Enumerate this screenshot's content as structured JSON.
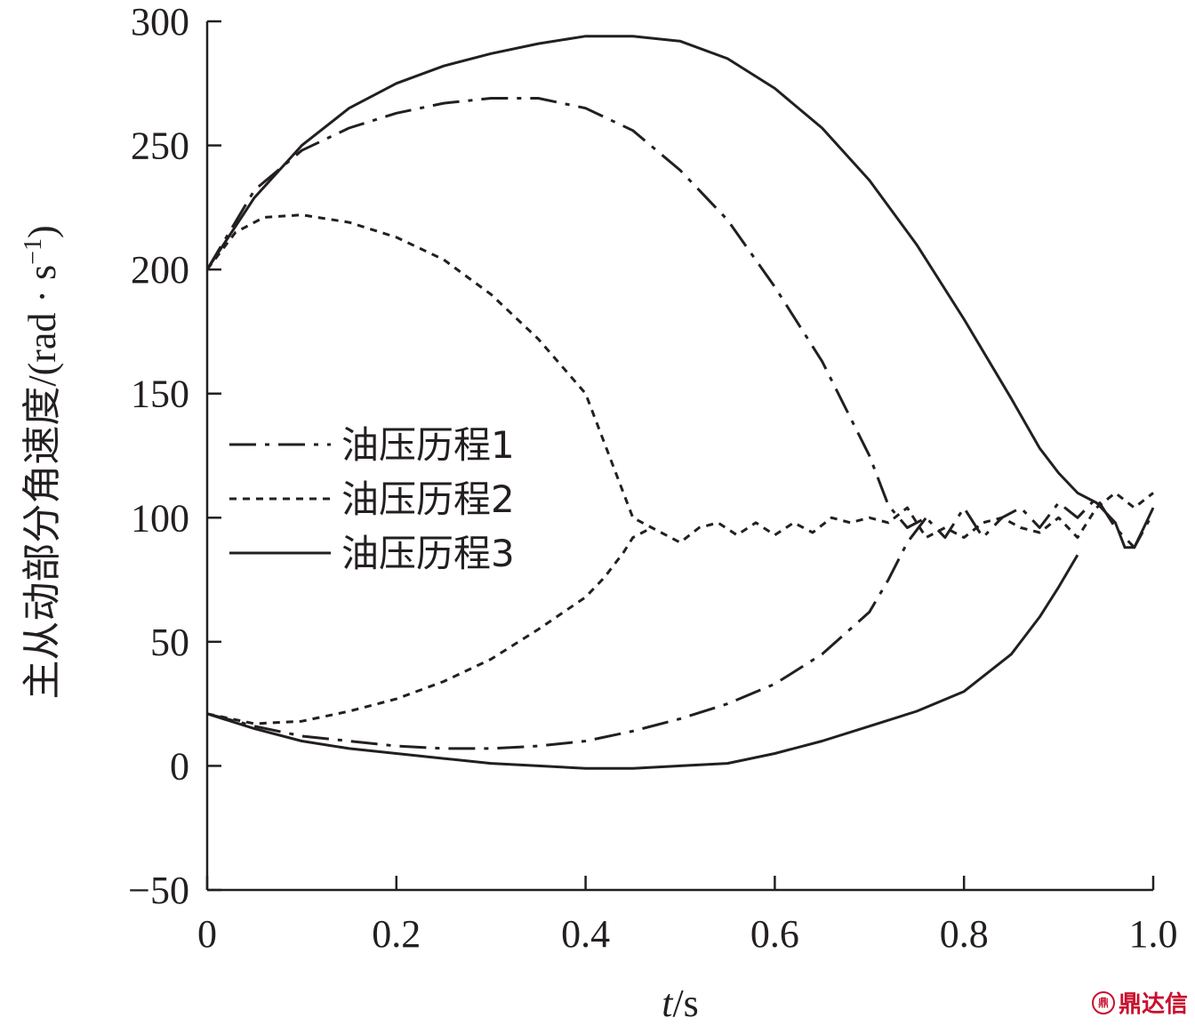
{
  "chart_data": {
    "type": "line",
    "xlabel": "t/s",
    "xlabel_italic_part": "t",
    "xlabel_rest": "/s",
    "ylabel": "主从动部分角速度/(rad · s",
    "ylabel_sup": "−1",
    "ylabel_close": ")",
    "xlim": [
      0,
      1.0
    ],
    "ylim": [
      -50,
      300
    ],
    "xticks": [
      "0",
      "0.2",
      "0.4",
      "0.6",
      "0.8",
      "1.0"
    ],
    "xtick_values": [
      0,
      0.2,
      0.4,
      0.6,
      0.8,
      1.0
    ],
    "yticks": [
      "−50",
      "0",
      "50",
      "100",
      "150",
      "200",
      "250",
      "300"
    ],
    "ytick_values": [
      -50,
      0,
      50,
      100,
      150,
      200,
      250,
      300
    ],
    "grid": false,
    "legend_position": "center-left",
    "series": [
      {
        "name": "油压历程1",
        "style": "dash-dot",
        "driving": [
          [
            0,
            200
          ],
          [
            0.05,
            232
          ],
          [
            0.1,
            248
          ],
          [
            0.15,
            257
          ],
          [
            0.2,
            263
          ],
          [
            0.25,
            267
          ],
          [
            0.3,
            269
          ],
          [
            0.35,
            269
          ],
          [
            0.4,
            265
          ],
          [
            0.45,
            256
          ],
          [
            0.5,
            240
          ],
          [
            0.55,
            220
          ],
          [
            0.6,
            193
          ],
          [
            0.65,
            163
          ],
          [
            0.7,
            125
          ],
          [
            0.72,
            105
          ],
          [
            0.74,
            96
          ],
          [
            0.76,
            100
          ],
          [
            0.78,
            92
          ],
          [
            0.8,
            104
          ],
          [
            0.82,
            92
          ],
          [
            0.84,
            100
          ],
          [
            0.86,
            104
          ],
          [
            0.88,
            96
          ],
          [
            0.9,
            106
          ],
          [
            0.92,
            100
          ],
          [
            0.94,
            108
          ],
          [
            0.96,
            96
          ],
          [
            0.98,
            88
          ],
          [
            1.0,
            102
          ]
        ],
        "driven": [
          [
            0,
            21
          ],
          [
            0.05,
            16
          ],
          [
            0.1,
            12
          ],
          [
            0.15,
            10
          ],
          [
            0.2,
            8
          ],
          [
            0.25,
            7
          ],
          [
            0.3,
            7
          ],
          [
            0.35,
            8
          ],
          [
            0.4,
            10
          ],
          [
            0.45,
            14
          ],
          [
            0.5,
            19
          ],
          [
            0.55,
            25
          ],
          [
            0.6,
            33
          ],
          [
            0.65,
            45
          ],
          [
            0.7,
            62
          ],
          [
            0.72,
            75
          ],
          [
            0.74,
            90
          ],
          [
            0.76,
            100
          ]
        ]
      },
      {
        "name": "油压历程2",
        "style": "dotted",
        "driving": [
          [
            0,
            200
          ],
          [
            0.03,
            215
          ],
          [
            0.06,
            221
          ],
          [
            0.1,
            222
          ],
          [
            0.15,
            219
          ],
          [
            0.2,
            213
          ],
          [
            0.25,
            204
          ],
          [
            0.3,
            190
          ],
          [
            0.35,
            172
          ],
          [
            0.4,
            150
          ],
          [
            0.43,
            120
          ],
          [
            0.45,
            100
          ],
          [
            0.47,
            96
          ],
          [
            0.5,
            90
          ],
          [
            0.52,
            96
          ],
          [
            0.54,
            98
          ],
          [
            0.56,
            93
          ],
          [
            0.58,
            98
          ],
          [
            0.6,
            93
          ],
          [
            0.62,
            98
          ],
          [
            0.64,
            94
          ],
          [
            0.66,
            100
          ],
          [
            0.68,
            98
          ],
          [
            0.7,
            100
          ],
          [
            0.72,
            98
          ],
          [
            0.74,
            104
          ],
          [
            0.76,
            92
          ],
          [
            0.78,
            96
          ],
          [
            0.8,
            92
          ],
          [
            0.82,
            98
          ],
          [
            0.84,
            100
          ],
          [
            0.86,
            96
          ],
          [
            0.88,
            94
          ],
          [
            0.9,
            100
          ],
          [
            0.92,
            92
          ],
          [
            0.94,
            104
          ],
          [
            0.96,
            110
          ],
          [
            0.98,
            104
          ],
          [
            1.0,
            110
          ]
        ],
        "driven": [
          [
            0,
            21
          ],
          [
            0.05,
            17
          ],
          [
            0.1,
            18
          ],
          [
            0.15,
            22
          ],
          [
            0.2,
            27
          ],
          [
            0.25,
            34
          ],
          [
            0.3,
            43
          ],
          [
            0.35,
            55
          ],
          [
            0.4,
            68
          ],
          [
            0.42,
            76
          ],
          [
            0.44,
            86
          ],
          [
            0.45,
            92
          ],
          [
            0.47,
            96
          ]
        ]
      },
      {
        "name": "油压历程3",
        "style": "solid",
        "driving": [
          [
            0,
            200
          ],
          [
            0.05,
            229
          ],
          [
            0.1,
            250
          ],
          [
            0.15,
            265
          ],
          [
            0.2,
            275
          ],
          [
            0.25,
            282
          ],
          [
            0.3,
            287
          ],
          [
            0.35,
            291
          ],
          [
            0.4,
            294
          ],
          [
            0.45,
            294
          ],
          [
            0.5,
            292
          ],
          [
            0.55,
            285
          ],
          [
            0.6,
            273
          ],
          [
            0.65,
            257
          ],
          [
            0.7,
            236
          ],
          [
            0.75,
            210
          ],
          [
            0.8,
            180
          ],
          [
            0.85,
            148
          ],
          [
            0.88,
            128
          ],
          [
            0.9,
            118
          ],
          [
            0.92,
            110
          ],
          [
            0.94,
            106
          ],
          [
            0.96,
            98
          ],
          [
            0.97,
            88
          ],
          [
            0.98,
            88
          ],
          [
            0.99,
            96
          ],
          [
            1.0,
            104
          ]
        ],
        "driven": [
          [
            0,
            21
          ],
          [
            0.05,
            15
          ],
          [
            0.1,
            10
          ],
          [
            0.15,
            7
          ],
          [
            0.2,
            5
          ],
          [
            0.25,
            3
          ],
          [
            0.3,
            1
          ],
          [
            0.35,
            0
          ],
          [
            0.4,
            -1
          ],
          [
            0.45,
            -1
          ],
          [
            0.5,
            0
          ],
          [
            0.55,
            1
          ],
          [
            0.6,
            5
          ],
          [
            0.65,
            10
          ],
          [
            0.7,
            16
          ],
          [
            0.75,
            22
          ],
          [
            0.8,
            30
          ],
          [
            0.85,
            45
          ],
          [
            0.88,
            60
          ],
          [
            0.9,
            72
          ],
          [
            0.92,
            85
          ]
        ]
      }
    ]
  },
  "watermark": {
    "logo": "鼎",
    "text": "鼎达信"
  }
}
